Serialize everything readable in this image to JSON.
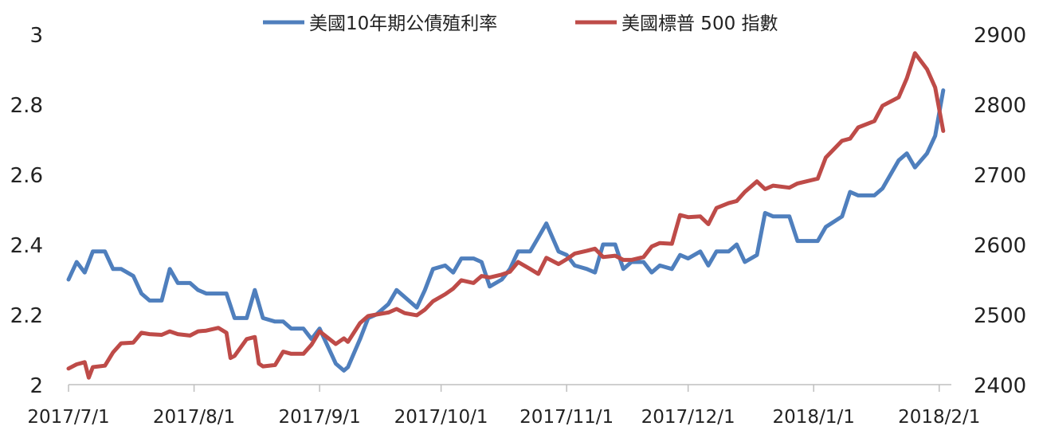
{
  "chart_data": {
    "type": "line",
    "title": "",
    "legend_position": "top-center",
    "grid": false,
    "x_range": [
      "2017-07-01",
      "2018-02-04"
    ],
    "x_ticks": [
      "2017/7/1",
      "2017/8/1",
      "2017/9/1",
      "2017/10/1",
      "2017/11/1",
      "2017/12/1",
      "2018/1/1",
      "2018/2/1"
    ],
    "y_left": {
      "range": [
        2,
        3
      ],
      "ticks": [
        "2",
        "2.2",
        "2.4",
        "2.6",
        "2.8",
        "3"
      ]
    },
    "y_right": {
      "range": [
        2400,
        2900
      ],
      "ticks": [
        "2400",
        "2500",
        "2600",
        "2700",
        "2800",
        "2900"
      ]
    },
    "series": [
      {
        "name": "美國10年期公債殖利率",
        "axis": "left",
        "color": "#4f7fbd",
        "x": [
          "2017-07-01",
          "2017-07-03",
          "2017-07-05",
          "2017-07-07",
          "2017-07-10",
          "2017-07-12",
          "2017-07-14",
          "2017-07-17",
          "2017-07-19",
          "2017-07-21",
          "2017-07-24",
          "2017-07-26",
          "2017-07-28",
          "2017-07-31",
          "2017-08-02",
          "2017-08-04",
          "2017-08-07",
          "2017-08-09",
          "2017-08-11",
          "2017-08-14",
          "2017-08-16",
          "2017-08-18",
          "2017-08-21",
          "2017-08-23",
          "2017-08-25",
          "2017-08-28",
          "2017-08-30",
          "2017-09-01",
          "2017-09-05",
          "2017-09-07",
          "2017-09-08",
          "2017-09-11",
          "2017-09-13",
          "2017-09-15",
          "2017-09-18",
          "2017-09-20",
          "2017-09-22",
          "2017-09-25",
          "2017-09-27",
          "2017-09-29",
          "2017-10-02",
          "2017-10-04",
          "2017-10-06",
          "2017-10-09",
          "2017-10-11",
          "2017-10-13",
          "2017-10-16",
          "2017-10-18",
          "2017-10-20",
          "2017-10-23",
          "2017-10-25",
          "2017-10-27",
          "2017-10-30",
          "2017-11-01",
          "2017-11-03",
          "2017-11-06",
          "2017-11-08",
          "2017-11-10",
          "2017-11-13",
          "2017-11-15",
          "2017-11-17",
          "2017-11-20",
          "2017-11-22",
          "2017-11-24",
          "2017-11-27",
          "2017-11-29",
          "2017-12-01",
          "2017-12-04",
          "2017-12-06",
          "2017-12-08",
          "2017-12-11",
          "2017-12-13",
          "2017-12-15",
          "2017-12-18",
          "2017-12-20",
          "2017-12-22",
          "2017-12-26",
          "2017-12-28",
          "2018-01-02",
          "2018-01-04",
          "2018-01-08",
          "2018-01-10",
          "2018-01-12",
          "2018-01-16",
          "2018-01-18",
          "2018-01-22",
          "2018-01-24",
          "2018-01-26",
          "2018-01-29",
          "2018-01-31",
          "2018-02-02"
        ],
        "values": [
          2.3,
          2.35,
          2.32,
          2.38,
          2.38,
          2.33,
          2.33,
          2.31,
          2.26,
          2.24,
          2.24,
          2.33,
          2.29,
          2.29,
          2.27,
          2.26,
          2.26,
          2.26,
          2.19,
          2.19,
          2.27,
          2.19,
          2.18,
          2.18,
          2.16,
          2.16,
          2.13,
          2.16,
          2.06,
          2.04,
          2.05,
          2.13,
          2.19,
          2.2,
          2.23,
          2.27,
          2.25,
          2.22,
          2.27,
          2.33,
          2.34,
          2.32,
          2.36,
          2.36,
          2.35,
          2.28,
          2.3,
          2.33,
          2.38,
          2.38,
          2.42,
          2.46,
          2.38,
          2.37,
          2.34,
          2.33,
          2.32,
          2.4,
          2.4,
          2.33,
          2.35,
          2.35,
          2.32,
          2.34,
          2.33,
          2.37,
          2.36,
          2.38,
          2.34,
          2.38,
          2.38,
          2.4,
          2.35,
          2.37,
          2.49,
          2.48,
          2.48,
          2.41,
          2.41,
          2.45,
          2.48,
          2.55,
          2.54,
          2.54,
          2.56,
          2.64,
          2.66,
          2.62,
          2.66,
          2.71,
          2.84
        ]
      },
      {
        "name": "美國標普 500 指數",
        "axis": "right",
        "color": "#be4b48",
        "x": [
          "2017-07-01",
          "2017-07-03",
          "2017-07-05",
          "2017-07-06",
          "2017-07-07",
          "2017-07-10",
          "2017-07-12",
          "2017-07-14",
          "2017-07-17",
          "2017-07-19",
          "2017-07-21",
          "2017-07-24",
          "2017-07-26",
          "2017-07-28",
          "2017-07-31",
          "2017-08-02",
          "2017-08-04",
          "2017-08-07",
          "2017-08-09",
          "2017-08-10",
          "2017-08-11",
          "2017-08-14",
          "2017-08-16",
          "2017-08-17",
          "2017-08-18",
          "2017-08-21",
          "2017-08-23",
          "2017-08-25",
          "2017-08-28",
          "2017-08-30",
          "2017-09-01",
          "2017-09-05",
          "2017-09-07",
          "2017-09-08",
          "2017-09-11",
          "2017-09-13",
          "2017-09-15",
          "2017-09-18",
          "2017-09-20",
          "2017-09-22",
          "2017-09-25",
          "2017-09-27",
          "2017-09-29",
          "2017-10-02",
          "2017-10-04",
          "2017-10-06",
          "2017-10-09",
          "2017-10-11",
          "2017-10-13",
          "2017-10-16",
          "2017-10-18",
          "2017-10-20",
          "2017-10-23",
          "2017-10-25",
          "2017-10-27",
          "2017-10-30",
          "2017-11-01",
          "2017-11-03",
          "2017-11-06",
          "2017-11-08",
          "2017-11-10",
          "2017-11-13",
          "2017-11-15",
          "2017-11-17",
          "2017-11-20",
          "2017-11-22",
          "2017-11-24",
          "2017-11-27",
          "2017-11-29",
          "2017-12-01",
          "2017-12-04",
          "2017-12-06",
          "2017-12-08",
          "2017-12-11",
          "2017-12-13",
          "2017-12-15",
          "2017-12-18",
          "2017-12-20",
          "2017-12-22",
          "2017-12-26",
          "2017-12-28",
          "2018-01-02",
          "2018-01-04",
          "2018-01-08",
          "2018-01-10",
          "2018-01-12",
          "2018-01-16",
          "2018-01-18",
          "2018-01-22",
          "2018-01-24",
          "2018-01-26",
          "2018-01-29",
          "2018-01-31",
          "2018-02-02"
        ],
        "values": [
          2423,
          2429,
          2432,
          2410,
          2425,
          2427,
          2446,
          2459,
          2460,
          2474,
          2472,
          2471,
          2476,
          2472,
          2470,
          2476,
          2477,
          2481,
          2474,
          2438,
          2441,
          2465,
          2468,
          2430,
          2426,
          2428,
          2447,
          2444,
          2444,
          2457,
          2476,
          2458,
          2466,
          2461,
          2488,
          2498,
          2500,
          2503,
          2508,
          2502,
          2499,
          2507,
          2519,
          2529,
          2537,
          2549,
          2545,
          2555,
          2553,
          2557,
          2561,
          2575,
          2565,
          2558,
          2581,
          2572,
          2579,
          2587,
          2591,
          2594,
          2582,
          2584,
          2578,
          2578,
          2582,
          2597,
          2602,
          2601,
          2642,
          2639,
          2640,
          2629,
          2652,
          2659,
          2662,
          2675,
          2690,
          2679,
          2684,
          2681,
          2687,
          2694,
          2724,
          2748,
          2751,
          2767,
          2776,
          2798,
          2810,
          2837,
          2873,
          2850,
          2824,
          2762
        ]
      }
    ]
  }
}
